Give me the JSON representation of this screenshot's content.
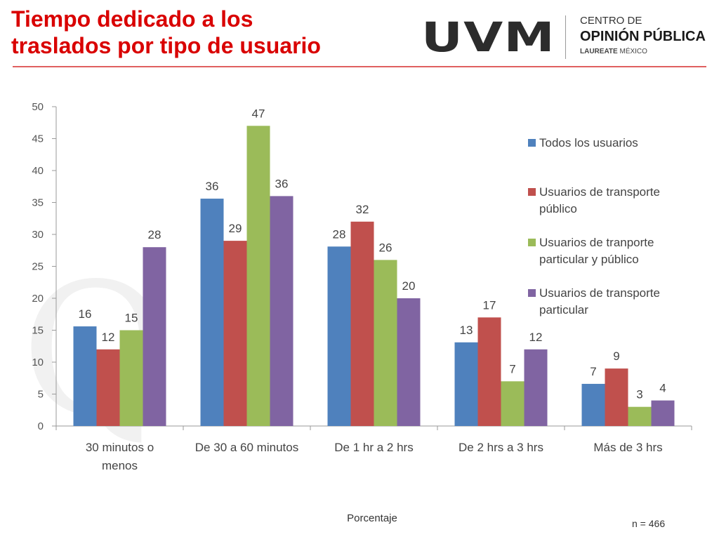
{
  "header": {
    "title_line1": "Tiempo dedicado a los",
    "title_line2": "traslados por tipo de usuario",
    "logo": {
      "brand": "UVM",
      "line1": "CENTRO DE",
      "line2": "OPINIÓN PÚBLICA",
      "line3_bold": "LAUREATE",
      "line3": "MÉXICO"
    }
  },
  "chart_data": {
    "type": "bar",
    "title": "Tiempo dedicado a los traslados por tipo de usuario",
    "xlabel": "Porcentaje",
    "ylabel": "",
    "ylim": [
      0,
      50
    ],
    "yticks": [
      0,
      5,
      10,
      15,
      20,
      25,
      30,
      35,
      40,
      45,
      50
    ],
    "categories": [
      "30 minutos o menos",
      "De 30 a 60 minutos",
      "De 1 hr a 2 hrs",
      "De 2 hrs a 3 hrs",
      "Más de 3 hrs"
    ],
    "category_lines": [
      [
        "30 minutos o",
        "menos"
      ],
      [
        "De 30 a 60 minutos"
      ],
      [
        "De 1 hr a 2 hrs"
      ],
      [
        "De 2 hrs a 3 hrs"
      ],
      [
        "Más de 3 hrs"
      ]
    ],
    "series": [
      {
        "name": "Todos los usuarios",
        "legend_lines": [
          "Todos los usuarios"
        ],
        "color": "#4f81bd",
        "values": [
          15.6,
          35.6,
          28.1,
          13.1,
          6.6
        ],
        "labels": [
          "16",
          "36",
          "28",
          "13",
          "7"
        ]
      },
      {
        "name": "Usuarios de transporte público",
        "legend_lines": [
          "Usuarios de transporte",
          "público"
        ],
        "color": "#c0504d",
        "values": [
          12,
          29,
          32,
          17,
          9
        ],
        "labels": [
          "12",
          "29",
          "32",
          "17",
          "9"
        ]
      },
      {
        "name": "Usuarios de tranporte particular y público",
        "legend_lines": [
          "Usuarios de tranporte",
          "particular y público"
        ],
        "color": "#9bbb59",
        "values": [
          15,
          47,
          26,
          7,
          3
        ],
        "labels": [
          "15",
          "47",
          "26",
          "7",
          "3"
        ]
      },
      {
        "name": "Usuarios de transporte particular",
        "legend_lines": [
          "Usuarios de transporte",
          "particular"
        ],
        "color": "#8064a2",
        "values": [
          28,
          36,
          20,
          12,
          4
        ],
        "labels": [
          "28",
          "36",
          "20",
          "12",
          "4"
        ]
      }
    ],
    "legend_position": "right",
    "grid": false
  },
  "footer": {
    "note": "n = 466"
  },
  "watermark": "Q"
}
